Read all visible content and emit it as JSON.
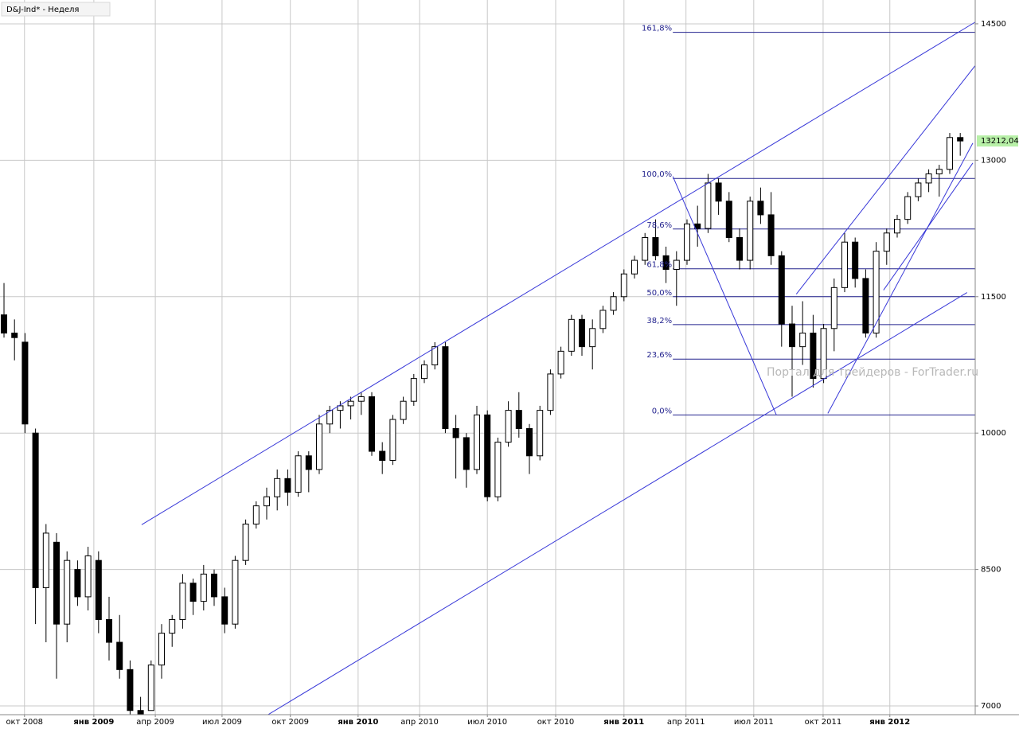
{
  "chart_data": {
    "type": "candlestick",
    "title": "D&J-Ind* - Неделя",
    "watermark": "Портал для трейдеров - ForTrader.ru",
    "x": [
      0,
      2,
      4,
      6,
      8,
      10,
      12,
      14,
      16,
      18,
      20,
      22,
      24,
      26,
      28,
      30,
      32,
      34,
      36,
      38,
      40,
      42,
      44,
      46,
      48,
      50,
      52,
      54,
      56,
      58,
      60,
      62,
      64,
      66,
      68,
      70,
      72,
      74,
      76,
      78,
      80,
      82,
      84,
      86,
      88,
      90,
      92,
      94,
      96,
      98,
      100,
      102,
      104,
      106,
      108,
      110,
      112,
      114,
      116,
      118,
      120,
      122,
      124,
      126,
      128,
      130,
      132,
      134,
      136,
      138,
      140,
      142,
      144,
      146,
      148,
      150,
      152,
      154,
      156,
      158,
      160,
      162,
      164,
      166,
      168,
      170,
      172,
      174,
      176,
      178,
      180,
      182
    ],
    "open": [
      11300,
      11100,
      11000,
      10000,
      8300,
      8800,
      7900,
      8500,
      8200,
      8600,
      7950,
      7700,
      7400,
      6950,
      6950,
      7450,
      7800,
      7950,
      8350,
      8150,
      8450,
      8200,
      7900,
      8600,
      9000,
      9200,
      9300,
      9500,
      9350,
      9750,
      9600,
      10100,
      10250,
      10300,
      10350,
      10400,
      9800,
      9700,
      10150,
      10350,
      10600,
      10750,
      10950,
      10050,
      9950,
      9600,
      10200,
      9300,
      9900,
      10250,
      10050,
      9750,
      10250,
      10650,
      10900,
      11250,
      10950,
      11150,
      11350,
      11500,
      11750,
      11900,
      12150,
      11950,
      11800,
      11900,
      12300,
      12250,
      12750,
      12550,
      12150,
      11900,
      12550,
      12400,
      11950,
      11200,
      10950,
      11100,
      10600,
      11150,
      11600,
      12100,
      11700,
      11100,
      12000,
      12200,
      12350,
      12600,
      12750,
      12850,
      12900,
      13250
    ],
    "high": [
      11650,
      11250,
      11100,
      10050,
      9000,
      8900,
      8700,
      8600,
      8750,
      8700,
      8200,
      8000,
      7500,
      7100,
      7500,
      7900,
      8000,
      8450,
      8400,
      8550,
      8500,
      8300,
      8650,
      9050,
      9250,
      9400,
      9600,
      9600,
      9800,
      9800,
      10200,
      10300,
      10350,
      10400,
      10450,
      10450,
      9900,
      10200,
      10400,
      10650,
      10800,
      11000,
      11000,
      10200,
      10000,
      10300,
      10250,
      9950,
      10350,
      10450,
      10100,
      10300,
      10700,
      10950,
      11300,
      11300,
      11250,
      11400,
      11550,
      11800,
      11950,
      12200,
      12350,
      12050,
      12000,
      12350,
      12500,
      12850,
      12800,
      12650,
      12250,
      12600,
      12700,
      12650,
      12000,
      11400,
      11450,
      11300,
      11200,
      11700,
      12200,
      12150,
      11800,
      12100,
      12250,
      12400,
      12650,
      12800,
      12900,
      12950,
      13300,
      13300
    ],
    "low": [
      11050,
      10800,
      10000,
      7900,
      7700,
      7300,
      7700,
      8100,
      8050,
      7800,
      7500,
      7300,
      6900,
      6800,
      6950,
      7300,
      7650,
      7850,
      8000,
      8050,
      8100,
      7800,
      7850,
      8550,
      8950,
      9050,
      9150,
      9200,
      9300,
      9350,
      9550,
      10000,
      10050,
      10150,
      10200,
      9750,
      9550,
      9650,
      10100,
      10300,
      10550,
      10700,
      10000,
      9500,
      9400,
      9550,
      9250,
      9250,
      9850,
      9950,
      9550,
      9700,
      10200,
      10600,
      10850,
      10850,
      10700,
      11100,
      11300,
      11450,
      11700,
      11850,
      11900,
      11650,
      11400,
      11850,
      12050,
      12200,
      12400,
      12100,
      11800,
      11800,
      12300,
      11850,
      10950,
      10400,
      10750,
      10500,
      10550,
      10900,
      11550,
      11600,
      11050,
      11050,
      11850,
      12150,
      12300,
      12550,
      12650,
      12600,
      12850,
      13050
    ],
    "close": [
      11100,
      11050,
      10100,
      8300,
      8900,
      7900,
      8600,
      8200,
      8650,
      7950,
      7700,
      7400,
      6950,
      6900,
      7450,
      7800,
      7950,
      8350,
      8150,
      8450,
      8200,
      7900,
      8600,
      9000,
      9200,
      9300,
      9500,
      9350,
      9750,
      9600,
      10100,
      10250,
      10300,
      10350,
      10400,
      9800,
      9700,
      10150,
      10350,
      10600,
      10750,
      10950,
      10050,
      9950,
      9600,
      10200,
      9300,
      9900,
      10250,
      10050,
      9750,
      10250,
      10650,
      10900,
      11250,
      10950,
      11150,
      11350,
      11500,
      11750,
      11900,
      12150,
      11950,
      11800,
      11900,
      12300,
      12250,
      12750,
      12550,
      12150,
      11900,
      12550,
      12400,
      11950,
      11200,
      10950,
      11100,
      10600,
      11150,
      11600,
      12100,
      11700,
      11100,
      12000,
      12200,
      12350,
      12600,
      12750,
      12850,
      12900,
      13250,
      13212.04
    ],
    "last_label": {
      "value": 13212.04,
      "label": "13212,04"
    },
    "xlim": [
      -0.76,
      184.85
    ],
    "xticks": [
      {
        "value": 3.9,
        "label": "окт 2008"
      },
      {
        "value": 17.1,
        "label": "янв 2009"
      },
      {
        "value": 28.8,
        "label": "апр 2009"
      },
      {
        "value": 41.5,
        "label": "июл 2009"
      },
      {
        "value": 54.5,
        "label": "окт 2009"
      },
      {
        "value": 67.4,
        "label": "янв 2010"
      },
      {
        "value": 79.1,
        "label": "апр 2010"
      },
      {
        "value": 92,
        "label": "июл 2010"
      },
      {
        "value": 105,
        "label": "окт 2010"
      },
      {
        "value": 118,
        "label": "янв 2011"
      },
      {
        "value": 129.8,
        "label": "апр 2011"
      },
      {
        "value": 142.7,
        "label": "июл 2011"
      },
      {
        "value": 155.9,
        "label": "окт 2011"
      },
      {
        "value": 168.6,
        "label": "янв 2012"
      }
    ],
    "ylim": [
      6904,
      14762
    ],
    "yticks": [
      7000,
      8500,
      10000,
      11500,
      13000,
      14500
    ],
    "grid": true,
    "up_color": "#ffffff",
    "down_color": "#000000",
    "line_color": "#3838d8",
    "fib": {
      "from": 127.3,
      "low": 10200,
      "high": 12800,
      "levels": [
        {
          "value": 161.8,
          "label": "161,8%"
        },
        {
          "value": 100,
          "label": "100,0%"
        },
        {
          "value": 78.6,
          "label": "78,6%"
        },
        {
          "value": 61.8,
          "label": "61,8%"
        },
        {
          "value": 50,
          "label": "50,0%"
        },
        {
          "value": 38.2,
          "label": "38,2%"
        },
        {
          "value": 23.6,
          "label": "23,6%"
        },
        {
          "value": 0,
          "label": "0,0%"
        }
      ]
    },
    "trend_lines": [
      [
        26.2,
        8993,
        184.8,
        14517
      ],
      [
        50,
        6895,
        183.3,
        11546
      ],
      [
        150.8,
        11528,
        184.8,
        14037
      ],
      [
        167.4,
        11572,
        184.4,
        12970
      ],
      [
        156.8,
        10217,
        184.4,
        13189
      ],
      [
        127.3,
        12822,
        147,
        10200
      ]
    ]
  }
}
